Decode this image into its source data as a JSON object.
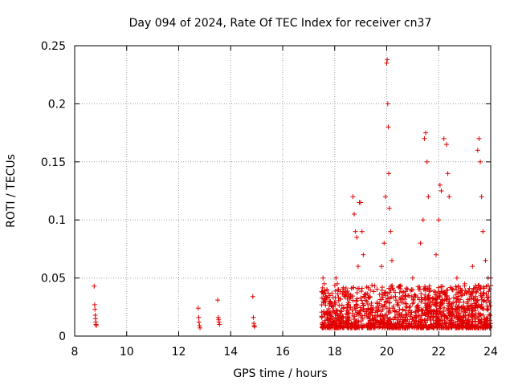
{
  "chart_data": {
    "type": "scatter",
    "title": "Day 094 of 2024, Rate Of TEC Index for receiver cn37",
    "xlabel": "GPS time / hours",
    "ylabel": "ROTI / TECUs",
    "xlim": [
      8,
      24
    ],
    "ylim": [
      0,
      0.25
    ],
    "xticks": [
      8,
      10,
      12,
      14,
      16,
      18,
      20,
      22,
      24
    ],
    "yticks": [
      0,
      0.05,
      0.1,
      0.15,
      0.2,
      0.25
    ],
    "xtick_labels": [
      "8",
      "10",
      "12",
      "14",
      "16",
      "18",
      "20",
      "22",
      "24"
    ],
    "ytick_labels": [
      "0",
      "0.05",
      "0.1",
      "0.15",
      "0.2",
      "0.25"
    ],
    "grid": true,
    "marker": "+",
    "color": "#e00000",
    "series": [
      {
        "name": "ROTI",
        "x": [
          8.75,
          8.77,
          8.78,
          8.79,
          8.8,
          8.81,
          8.82,
          8.83,
          12.75,
          12.77,
          12.78,
          12.8,
          12.82,
          13.5,
          13.52,
          13.54,
          13.55,
          13.57,
          14.85,
          14.87,
          14.89,
          14.9,
          14.92,
          17.55,
          17.6,
          17.7,
          17.8,
          18.05,
          18.1,
          18.15,
          18.7,
          18.75,
          18.8,
          18.85,
          18.9,
          18.95,
          19.0,
          19.05,
          19.1,
          19.8,
          19.9,
          19.95,
          20.0,
          20.02,
          20.04,
          20.06,
          20.08,
          20.1,
          20.15,
          20.2,
          21.0,
          21.3,
          21.4,
          21.45,
          21.5,
          21.55,
          21.6,
          21.9,
          22.0,
          22.05,
          22.1,
          22.2,
          22.3,
          22.35,
          22.4,
          22.7,
          23.0,
          23.3,
          23.5,
          23.55,
          23.6,
          23.65,
          23.7,
          23.8,
          23.9,
          24.0
        ],
        "y": [
          0.043,
          0.027,
          0.023,
          0.018,
          0.015,
          0.012,
          0.01,
          0.009,
          0.024,
          0.016,
          0.012,
          0.009,
          0.007,
          0.031,
          0.016,
          0.014,
          0.012,
          0.01,
          0.034,
          0.016,
          0.011,
          0.009,
          0.008,
          0.05,
          0.045,
          0.04,
          0.03,
          0.05,
          0.045,
          0.04,
          0.12,
          0.105,
          0.09,
          0.085,
          0.06,
          0.115,
          0.115,
          0.09,
          0.07,
          0.06,
          0.08,
          0.12,
          0.235,
          0.238,
          0.2,
          0.18,
          0.14,
          0.11,
          0.09,
          0.065,
          0.05,
          0.08,
          0.1,
          0.17,
          0.175,
          0.15,
          0.12,
          0.07,
          0.1,
          0.13,
          0.125,
          0.17,
          0.165,
          0.14,
          0.12,
          0.05,
          0.045,
          0.06,
          0.16,
          0.17,
          0.15,
          0.12,
          0.09,
          0.065,
          0.05,
          0.05
        ]
      }
    ],
    "dense_band": {
      "x_range": [
        17.5,
        24.0
      ],
      "y_range": [
        0.003,
        0.04
      ],
      "description": "dense cluster of ROTI points"
    }
  }
}
